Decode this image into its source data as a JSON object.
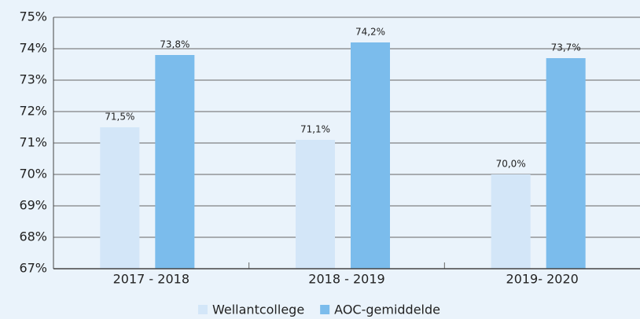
{
  "chart_data": {
    "type": "bar",
    "categories": [
      "2017 - 2018",
      "2018 - 2019",
      "2019- 2020"
    ],
    "series": [
      {
        "name": "Wellantcollege",
        "color": "#d3e6f8",
        "values": [
          71.5,
          71.1,
          70.0
        ],
        "value_labels": [
          "71,5%",
          "71,1%",
          "70,0%"
        ]
      },
      {
        "name": "AOC-gemiddelde",
        "color": "#7bbcec",
        "values": [
          73.8,
          74.2,
          73.7
        ],
        "value_labels": [
          "73,8%",
          "74,2%",
          "73,7%"
        ]
      }
    ],
    "ylim": [
      67,
      75
    ],
    "yticks": [
      {
        "value": 67,
        "label": "67%"
      },
      {
        "value": 68,
        "label": "68%"
      },
      {
        "value": 69,
        "label": "69%"
      },
      {
        "value": 70,
        "label": "70%"
      },
      {
        "value": 71,
        "label": "71%"
      },
      {
        "value": 72,
        "label": "72%"
      },
      {
        "value": 73,
        "label": "73%"
      },
      {
        "value": 74,
        "label": "74%"
      },
      {
        "value": 75,
        "label": "75%"
      }
    ],
    "grid": true,
    "legend": "bottom"
  }
}
